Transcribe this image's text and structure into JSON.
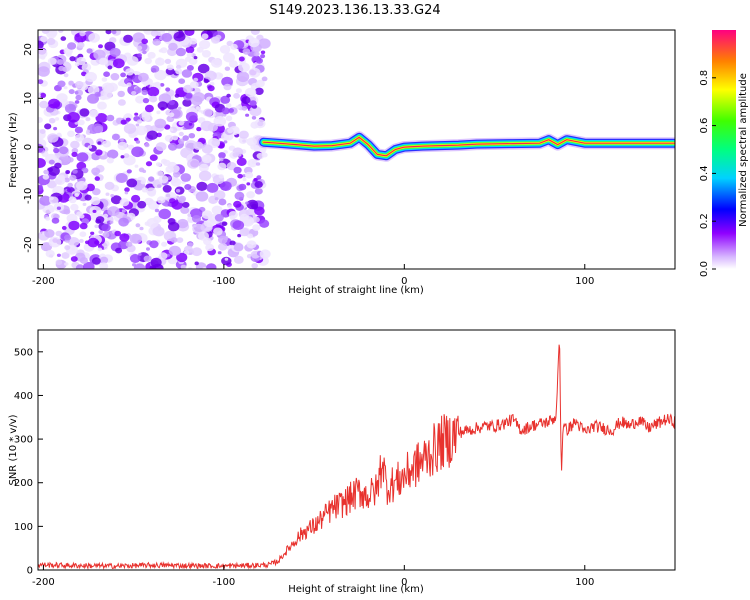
{
  "figure_title": "S149.2023.136.13.33.G24",
  "chart_data": [
    {
      "type": "heatmap",
      "xlabel": "Height of straight line (km)",
      "ylabel": "Frequency (Hz)",
      "xlim": [
        -203,
        150
      ],
      "ylim": [
        -25,
        24
      ],
      "x_ticks": [
        -200,
        -100,
        0,
        100
      ],
      "y_ticks": [
        -20,
        -10,
        0,
        10,
        20
      ],
      "colorbar": {
        "label": "Normalized spectral amplitude",
        "range": [
          0,
          1
        ],
        "ticks": [
          0.0,
          0.2,
          0.4,
          0.6,
          0.8
        ]
      },
      "noise_region_x": [
        -203,
        -77
      ],
      "ridge": {
        "x": [
          -78,
          -70,
          -60,
          -50,
          -40,
          -30,
          -25,
          -20,
          -15,
          -10,
          -5,
          0,
          10,
          20,
          30,
          40,
          60,
          75,
          80,
          85,
          90,
          100,
          120,
          150
        ],
        "frequency": [
          1,
          0.8,
          0.5,
          0.2,
          0.3,
          0.8,
          2,
          0.5,
          -1.5,
          -1.8,
          -0.5,
          0,
          0.2,
          0.3,
          0.4,
          0.6,
          0.7,
          0.8,
          1.5,
          0.5,
          1.5,
          0.8,
          0.8,
          0.8
        ]
      }
    },
    {
      "type": "line",
      "xlabel": "Height of straight line (km)",
      "ylabel": "SNR (10 * v/v)",
      "xlim": [
        -203,
        150
      ],
      "ylim": [
        0,
        550
      ],
      "x_ticks": [
        -200,
        -100,
        0,
        100
      ],
      "y_ticks": [
        0,
        100,
        200,
        300,
        400,
        500
      ],
      "color": "#e8322e",
      "series": [
        {
          "x": [
            -203,
            -180,
            -160,
            -140,
            -120,
            -100,
            -90,
            -80,
            -75,
            -70,
            -65,
            -60,
            -55,
            -50,
            -45,
            -40,
            -35,
            -30,
            -25,
            -20,
            -15,
            -12,
            -10,
            -5,
            0,
            5,
            10,
            15,
            20,
            25,
            30,
            35,
            40,
            45,
            50,
            55,
            60,
            65,
            70,
            75,
            80,
            84,
            86,
            87,
            88,
            90,
            95,
            100,
            105,
            110,
            115,
            120,
            125,
            130,
            135,
            140,
            145,
            150
          ],
          "y": [
            12,
            10,
            9,
            11,
            10,
            9,
            10,
            11,
            12,
            20,
            45,
            70,
            90,
            100,
            120,
            140,
            150,
            165,
            180,
            170,
            185,
            260,
            190,
            200,
            215,
            235,
            250,
            270,
            290,
            300,
            315,
            320,
            325,
            330,
            330,
            335,
            345,
            320,
            330,
            335,
            340,
            350,
            540,
            210,
            330,
            320,
            340,
            315,
            330,
            325,
            320,
            340,
            330,
            345,
            325,
            335,
            345,
            340
          ]
        }
      ]
    }
  ]
}
